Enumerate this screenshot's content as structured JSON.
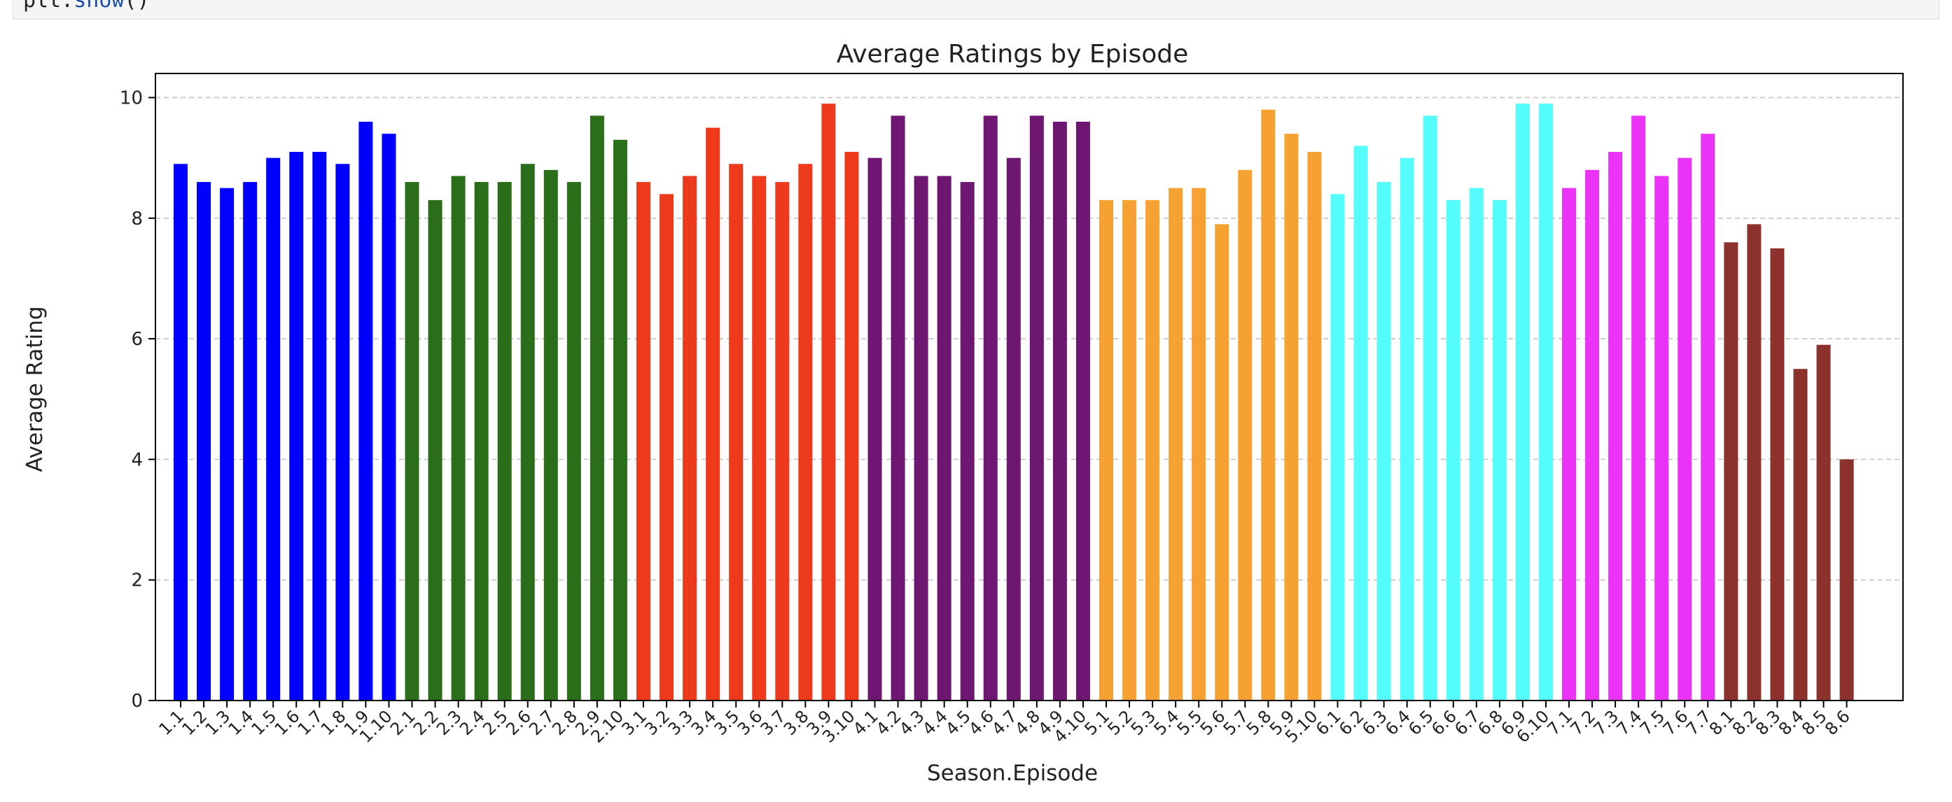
{
  "code": {
    "obj": "plt.",
    "fn": "show",
    "args": "()"
  },
  "chart_data": {
    "type": "bar",
    "title": "Average Ratings by Episode",
    "xlabel": "Season.Episode",
    "ylabel": "Average Rating",
    "ylim": [
      0,
      10.4
    ],
    "yticks": [
      0,
      2,
      4,
      6,
      8,
      10
    ],
    "grid": "y-dashed",
    "series": [
      {
        "season": 1,
        "color": "#0000ff",
        "categories": [
          "1.1",
          "1.2",
          "1.3",
          "1.4",
          "1.5",
          "1.6",
          "1.7",
          "1.8",
          "1.9",
          "1.10"
        ],
        "values": [
          8.9,
          8.6,
          8.5,
          8.6,
          9.0,
          9.1,
          9.1,
          8.9,
          9.6,
          9.4
        ]
      },
      {
        "season": 2,
        "color": "#2a6e1a",
        "categories": [
          "2.1",
          "2.2",
          "2.3",
          "2.4",
          "2.5",
          "2.6",
          "2.7",
          "2.8",
          "2.9",
          "2.10"
        ],
        "values": [
          8.6,
          8.3,
          8.7,
          8.6,
          8.6,
          8.9,
          8.8,
          8.6,
          9.7,
          9.3
        ]
      },
      {
        "season": 3,
        "color": "#ee3a1c",
        "categories": [
          "3.1",
          "3.2",
          "3.3",
          "3.4",
          "3.5",
          "3.6",
          "3.7",
          "3.8",
          "3.9",
          "3.10"
        ],
        "values": [
          8.6,
          8.4,
          8.7,
          9.5,
          8.9,
          8.7,
          8.6,
          8.9,
          9.9,
          9.1
        ]
      },
      {
        "season": 4,
        "color": "#6d1672",
        "categories": [
          "4.1",
          "4.2",
          "4.3",
          "4.4",
          "4.5",
          "4.6",
          "4.7",
          "4.8",
          "4.9",
          "4.10"
        ],
        "values": [
          9.0,
          9.7,
          8.7,
          8.7,
          8.6,
          9.7,
          9.0,
          9.7,
          9.6,
          9.6
        ]
      },
      {
        "season": 5,
        "color": "#f6a232",
        "categories": [
          "5.1",
          "5.2",
          "5.3",
          "5.4",
          "5.5",
          "5.6",
          "5.7",
          "5.8",
          "5.9",
          "5.10"
        ],
        "values": [
          8.3,
          8.3,
          8.3,
          8.5,
          8.5,
          7.9,
          8.8,
          9.8,
          9.4,
          9.1
        ]
      },
      {
        "season": 6,
        "color": "#55fcfc",
        "categories": [
          "6.1",
          "6.2",
          "6.3",
          "6.4",
          "6.5",
          "6.6",
          "6.7",
          "6.8",
          "6.9",
          "6.10"
        ],
        "values": [
          8.4,
          9.2,
          8.6,
          9.0,
          9.7,
          8.3,
          8.5,
          8.3,
          9.9,
          9.9
        ]
      },
      {
        "season": 7,
        "color": "#ea33f7",
        "categories": [
          "7.1",
          "7.2",
          "7.3",
          "7.4",
          "7.5",
          "7.6",
          "7.7"
        ],
        "values": [
          8.5,
          8.8,
          9.1,
          9.7,
          8.7,
          9.0,
          9.4
        ]
      },
      {
        "season": 8,
        "color": "#8d312c",
        "categories": [
          "8.1",
          "8.2",
          "8.3",
          "8.4",
          "8.5",
          "8.6"
        ],
        "values": [
          7.6,
          7.9,
          7.5,
          5.5,
          5.9,
          4.0
        ]
      }
    ]
  }
}
